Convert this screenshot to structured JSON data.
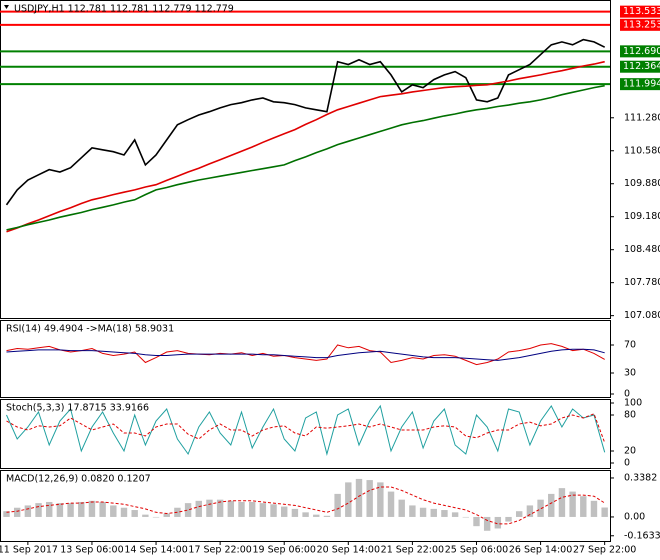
{
  "chart_data": [
    {
      "type": "line",
      "title": "USDJPY,H1  112.781 112.781 112.779 112.779",
      "ylim": [
        107.03,
        113.78
      ],
      "yticks": [
        {
          "value": 111.28,
          "label": "111.280"
        },
        {
          "value": 110.58,
          "label": "110.580"
        },
        {
          "value": 109.88,
          "label": "109.880"
        },
        {
          "value": 109.18,
          "label": "109.180"
        },
        {
          "value": 108.48,
          "label": "108.480"
        },
        {
          "value": 107.78,
          "label": "107.780"
        },
        {
          "value": 107.08,
          "label": "107.080"
        }
      ],
      "levels": [
        {
          "value": 113.533,
          "label": "113.533",
          "color": "#ff0000"
        },
        {
          "value": 113.253,
          "label": "113.253",
          "color": "#ff0000"
        },
        {
          "value": 112.69,
          "label": "112.690",
          "color": "#008000"
        },
        {
          "value": 112.364,
          "label": "112.364",
          "color": "#008000"
        },
        {
          "value": 111.994,
          "label": "111.994",
          "color": "#008000"
        }
      ],
      "series": [
        {
          "color": "#000000",
          "values": [
            109.43,
            109.75,
            109.96,
            110.07,
            110.18,
            110.13,
            110.22,
            110.43,
            110.64,
            110.6,
            110.56,
            110.49,
            110.81,
            110.28,
            110.49,
            110.81,
            111.13,
            111.24,
            111.34,
            111.41,
            111.49,
            111.56,
            111.6,
            111.66,
            111.7,
            111.62,
            111.6,
            111.56,
            111.49,
            111.45,
            111.41,
            112.47,
            112.41,
            112.51,
            112.41,
            112.47,
            112.19,
            111.83,
            111.98,
            111.92,
            112.09,
            112.19,
            112.26,
            112.13,
            111.66,
            111.62,
            111.7,
            112.19,
            112.3,
            112.41,
            112.62,
            112.83,
            112.89,
            112.83,
            112.94,
            112.89,
            112.779
          ]
        },
        {
          "color": "#e00000",
          "values": [
            108.86,
            108.94,
            109.03,
            109.11,
            109.2,
            109.29,
            109.37,
            109.46,
            109.54,
            109.59,
            109.65,
            109.7,
            109.75,
            109.81,
            109.86,
            109.95,
            110.04,
            110.13,
            110.21,
            110.3,
            110.39,
            110.48,
            110.57,
            110.66,
            110.76,
            110.85,
            110.94,
            111.03,
            111.14,
            111.24,
            111.35,
            111.45,
            111.52,
            111.59,
            111.66,
            111.73,
            111.76,
            111.79,
            111.83,
            111.86,
            111.89,
            111.92,
            111.94,
            111.95,
            111.97,
            111.98,
            112.02,
            112.06,
            112.11,
            112.15,
            112.19,
            112.24,
            112.28,
            112.33,
            112.38,
            112.42,
            112.47
          ]
        },
        {
          "color": "#007000",
          "values": [
            108.9,
            108.95,
            109.01,
            109.06,
            109.11,
            109.17,
            109.22,
            109.27,
            109.33,
            109.38,
            109.43,
            109.49,
            109.54,
            109.65,
            109.75,
            109.8,
            109.86,
            109.91,
            109.96,
            110.0,
            110.04,
            110.08,
            110.12,
            110.16,
            110.2,
            110.24,
            110.28,
            110.37,
            110.45,
            110.54,
            110.62,
            110.71,
            110.78,
            110.85,
            110.92,
            110.99,
            111.06,
            111.13,
            111.18,
            111.22,
            111.27,
            111.32,
            111.36,
            111.41,
            111.45,
            111.48,
            111.52,
            111.55,
            111.59,
            111.62,
            111.66,
            111.71,
            111.77,
            111.82,
            111.87,
            111.92,
            111.96
          ]
        }
      ]
    },
    {
      "type": "line",
      "title": "RSI(14) 49.4904 ->MA(18) 58.9031",
      "ylim": [
        0,
        100
      ],
      "yticks": [
        70,
        30,
        0
      ],
      "series": [
        {
          "color": "#e00000",
          "values": [
            62,
            65,
            64,
            66,
            68,
            63,
            60,
            62,
            65,
            58,
            55,
            57,
            60,
            45,
            52,
            60,
            62,
            58,
            57,
            56,
            58,
            57,
            59,
            55,
            58,
            54,
            55,
            52,
            50,
            48,
            50,
            70,
            66,
            68,
            62,
            60,
            45,
            48,
            52,
            50,
            55,
            56,
            54,
            48,
            42,
            45,
            50,
            60,
            62,
            65,
            70,
            72,
            68,
            62,
            64,
            58,
            49.4904
          ]
        },
        {
          "color": "#000080",
          "values": [
            60,
            61,
            62,
            63,
            63,
            63,
            62,
            62,
            62,
            61,
            60,
            59,
            58,
            56,
            55,
            55,
            56,
            57,
            57,
            57,
            57,
            57,
            57,
            57,
            56,
            56,
            55,
            54,
            53,
            52,
            52,
            55,
            57,
            59,
            60,
            61,
            59,
            57,
            55,
            53,
            52,
            52,
            52,
            51,
            50,
            49,
            48,
            50,
            52,
            55,
            58,
            61,
            63,
            64,
            64,
            63,
            58.9031
          ]
        }
      ]
    },
    {
      "type": "line",
      "title": "Stoch(5,3,3) 17.8715 33.9166",
      "ylim": [
        0,
        100
      ],
      "yticks": [
        100,
        80,
        20,
        0
      ],
      "series": [
        {
          "color": "#20a0a0",
          "values": [
            80,
            40,
            60,
            85,
            30,
            70,
            90,
            20,
            60,
            85,
            50,
            20,
            80,
            30,
            70,
            90,
            40,
            15,
            60,
            85,
            50,
            30,
            85,
            25,
            60,
            90,
            40,
            20,
            75,
            85,
            15,
            80,
            90,
            30,
            70,
            95,
            20,
            60,
            85,
            25,
            70,
            90,
            30,
            15,
            80,
            60,
            20,
            90,
            85,
            30,
            70,
            95,
            60,
            90,
            75,
            80,
            17.8715
          ]
        },
        {
          "color": "#e00000",
          "style": "dashed",
          "values": [
            70,
            60,
            55,
            62,
            60,
            62,
            75,
            65,
            55,
            60,
            65,
            50,
            50,
            45,
            60,
            65,
            65,
            48,
            40,
            55,
            65,
            55,
            55,
            45,
            55,
            60,
            62,
            50,
            45,
            60,
            58,
            60,
            62,
            65,
            60,
            65,
            60,
            55,
            55,
            55,
            60,
            62,
            60,
            45,
            42,
            50,
            55,
            55,
            65,
            68,
            62,
            65,
            75,
            80,
            75,
            82,
            33.9166
          ]
        }
      ]
    },
    {
      "type": "bar",
      "title": "MACD(12,26,9) 0.0820 0.1207",
      "ylim": [
        -0.2,
        0.39
      ],
      "yticks": [
        0.3382,
        {
          "value": 0,
          "label": "0.00"
        },
        -0.1633
      ],
      "categories": [
        null,
        null,
        "11 Sep 2017",
        null,
        null,
        null,
        null,
        null,
        "13 Sep 06:00",
        null,
        null,
        null,
        null,
        null,
        "14 Sep 14:00",
        null,
        null,
        null,
        null,
        null,
        "17 Sep 22:00",
        null,
        null,
        null,
        null,
        null,
        "19 Sep 06:00",
        null,
        null,
        null,
        null,
        null,
        "20 Sep 14:00",
        null,
        null,
        null,
        null,
        null,
        "21 Sep 22:00",
        null,
        null,
        null,
        null,
        null,
        "25 Sep 06:00",
        null,
        null,
        null,
        null,
        null,
        "26 Sep 14:00",
        null,
        null,
        null,
        null,
        null,
        "27 Sep 22:00"
      ],
      "series": [
        {
          "color": "#c0c0c0",
          "values": [
            0.05,
            0.08,
            0.1,
            0.12,
            0.13,
            0.12,
            0.12,
            0.13,
            0.14,
            0.13,
            0.1,
            0.08,
            0.06,
            0.02,
            0.0,
            0.03,
            0.08,
            0.12,
            0.14,
            0.15,
            0.15,
            0.14,
            0.13,
            0.13,
            0.12,
            0.11,
            0.09,
            0.07,
            0.04,
            0.02,
            0.01,
            0.2,
            0.3,
            0.33,
            0.32,
            0.3,
            0.22,
            0.15,
            0.1,
            0.08,
            0.07,
            0.06,
            0.04,
            0.0,
            -0.08,
            -0.12,
            -0.1,
            -0.04,
            0.05,
            0.1,
            0.15,
            0.2,
            0.25,
            0.22,
            0.18,
            0.14,
            0.082
          ]
        },
        {
          "color": "#e00000",
          "type": "line",
          "style": "dashed",
          "values": [
            0.04,
            0.05,
            0.07,
            0.09,
            0.1,
            0.11,
            0.12,
            0.12,
            0.13,
            0.13,
            0.12,
            0.11,
            0.09,
            0.07,
            0.04,
            0.03,
            0.04,
            0.06,
            0.09,
            0.11,
            0.13,
            0.14,
            0.14,
            0.14,
            0.13,
            0.12,
            0.11,
            0.1,
            0.08,
            0.06,
            0.04,
            0.07,
            0.12,
            0.18,
            0.23,
            0.26,
            0.26,
            0.23,
            0.19,
            0.15,
            0.12,
            0.1,
            0.08,
            0.06,
            0.02,
            -0.03,
            -0.06,
            -0.06,
            -0.03,
            0.02,
            0.07,
            0.12,
            0.17,
            0.19,
            0.19,
            0.18,
            0.1207
          ]
        }
      ]
    }
  ]
}
